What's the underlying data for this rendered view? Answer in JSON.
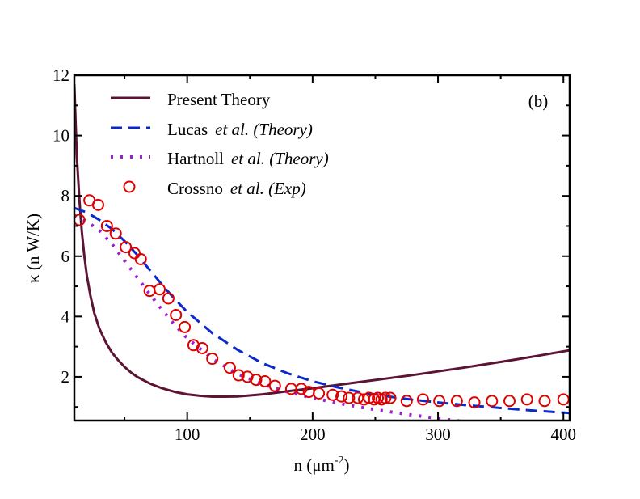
{
  "chart_data": {
    "type": "line",
    "panel_label": "(b)",
    "xlabel": {
      "main": "n (",
      "mu": "μ",
      "unit": "m",
      "exp": "-2",
      "close": ")"
    },
    "ylabel": {
      "kappa": "κ",
      "rest": " (n W/K)"
    },
    "xlim": [
      10,
      405
    ],
    "ylim": [
      0.55,
      12
    ],
    "x_ticks": [
      {
        "value": 100,
        "label": "100"
      },
      {
        "value": 200,
        "label": "200"
      },
      {
        "value": 300,
        "label": "300"
      },
      {
        "value": 400,
        "label": "400"
      }
    ],
    "y_ticks": [
      {
        "value": 2,
        "label": "2"
      },
      {
        "value": 4,
        "label": "4"
      },
      {
        "value": 6,
        "label": "6"
      },
      {
        "value": 8,
        "label": "8"
      },
      {
        "value": 10,
        "label": "10"
      },
      {
        "value": 12,
        "label": "12"
      }
    ],
    "grid": false,
    "legend_position": "top-left",
    "series": [
      {
        "name": "Present Theory",
        "legend_main": "Present Theory",
        "legend_italic": "",
        "style": "solid",
        "color": "#5c1334",
        "x": [
          10,
          11,
          12,
          14,
          16,
          18,
          20,
          23,
          26,
          30,
          35,
          40,
          45,
          50,
          55,
          60,
          70,
          80,
          90,
          100,
          110,
          120,
          130,
          140,
          150,
          160,
          170,
          180,
          190,
          200,
          220,
          240,
          260,
          280,
          300,
          320,
          340,
          360,
          380,
          405
        ],
        "y": [
          11.7,
          10.4,
          9.3,
          7.9,
          6.8,
          6.0,
          5.35,
          4.65,
          4.1,
          3.6,
          3.15,
          2.8,
          2.55,
          2.33,
          2.15,
          2.0,
          1.78,
          1.62,
          1.5,
          1.42,
          1.37,
          1.34,
          1.34,
          1.35,
          1.38,
          1.42,
          1.47,
          1.52,
          1.57,
          1.62,
          1.73,
          1.84,
          1.95,
          2.06,
          2.18,
          2.3,
          2.43,
          2.56,
          2.7,
          2.88
        ]
      },
      {
        "name": "Lucas et al. (Theory)",
        "legend_main": "Lucas",
        "legend_italic": "et al. (Theory)",
        "style": "dashed",
        "color": "#0a28cc",
        "x": [
          10,
          20,
          30,
          40,
          50,
          60,
          70,
          80,
          90,
          100,
          120,
          140,
          160,
          180,
          200,
          220,
          240,
          260,
          280,
          300,
          320,
          340,
          360,
          380,
          405
        ],
        "y": [
          7.6,
          7.45,
          7.2,
          6.9,
          6.5,
          6.05,
          5.55,
          5.05,
          4.58,
          4.15,
          3.45,
          2.9,
          2.45,
          2.12,
          1.85,
          1.65,
          1.48,
          1.35,
          1.24,
          1.15,
          1.07,
          1.0,
          0.93,
          0.87,
          0.8
        ]
      },
      {
        "name": "Hartnoll et al. (Theory)",
        "legend_main": "Hartnoll",
        "legend_italic": "et al. (Theory)",
        "style": "dotted",
        "color": "#9a1fd2",
        "x": [
          10,
          20,
          30,
          40,
          50,
          60,
          70,
          80,
          90,
          100,
          120,
          140,
          160,
          180,
          200,
          220,
          240,
          260,
          280,
          300,
          320,
          340,
          360,
          380,
          405
        ],
        "y": [
          7.35,
          7.15,
          6.85,
          6.4,
          5.85,
          5.3,
          4.75,
          4.22,
          3.72,
          3.28,
          2.6,
          2.1,
          1.75,
          1.5,
          1.3,
          1.13,
          0.98,
          0.85,
          0.73,
          0.62,
          0.52,
          0.43,
          0.35,
          0.27,
          0.18
        ]
      },
      {
        "name": "Crossno et al. (Exp)",
        "legend_main": "Crossno",
        "legend_italic": "et al. (Exp)",
        "style": "markers",
        "color": "#e00000",
        "x": [
          14,
          22,
          29,
          36,
          43,
          51,
          58,
          63,
          70,
          78,
          85,
          91,
          98,
          105,
          112,
          120,
          134,
          141,
          148,
          155,
          162,
          170,
          183,
          191,
          197,
          205,
          216,
          223,
          229,
          236,
          241,
          245,
          249,
          252,
          255,
          258,
          262,
          275,
          288,
          301,
          315,
          329,
          343,
          357,
          371,
          385,
          400
        ],
        "y": [
          7.2,
          7.85,
          7.7,
          7.0,
          6.75,
          6.3,
          6.1,
          5.9,
          4.85,
          4.9,
          4.6,
          4.05,
          3.65,
          3.05,
          2.95,
          2.6,
          2.3,
          2.05,
          2.0,
          1.9,
          1.85,
          1.7,
          1.6,
          1.6,
          1.5,
          1.45,
          1.4,
          1.35,
          1.3,
          1.3,
          1.25,
          1.3,
          1.25,
          1.3,
          1.25,
          1.3,
          1.3,
          1.2,
          1.25,
          1.2,
          1.2,
          1.15,
          1.2,
          1.2,
          1.25,
          1.2,
          1.25
        ]
      }
    ]
  }
}
